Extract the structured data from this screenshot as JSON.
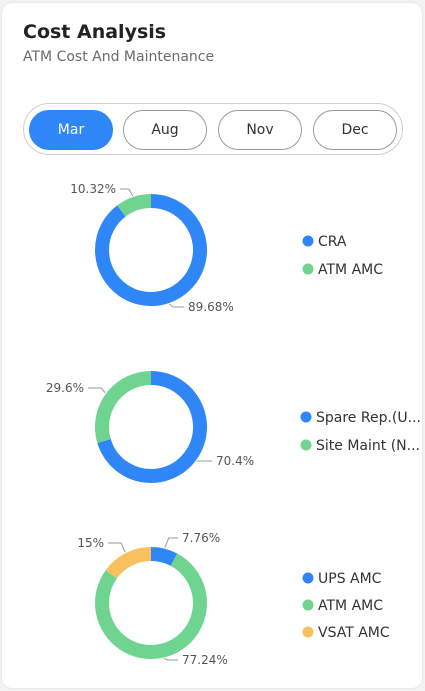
{
  "header": {
    "title": "Cost Analysis",
    "subtitle": "ATM Cost And Maintenance"
  },
  "tabs": [
    {
      "label": "Mar",
      "active": true
    },
    {
      "label": "Aug",
      "active": false
    },
    {
      "label": "Nov",
      "active": false
    },
    {
      "label": "Dec",
      "active": false
    }
  ],
  "colors": {
    "blue": "#2f86f6",
    "green": "#6ed48f",
    "orange": "#f9c15e",
    "accent": "#2f86f6"
  },
  "chart_data": [
    {
      "type": "pie",
      "style": "donut",
      "slices": [
        {
          "label": "CRA",
          "value": 89.68,
          "value_label": "89.68%",
          "color": "#2f86f6"
        },
        {
          "label": "ATM AMC",
          "value": 10.32,
          "value_label": "10.32%",
          "color": "#6ed48f"
        }
      ],
      "legend_position": "right"
    },
    {
      "type": "pie",
      "style": "donut",
      "slices": [
        {
          "label": "Spare Rep.(U...",
          "value": 70.4,
          "value_label": "70.4%",
          "color": "#2f86f6"
        },
        {
          "label": "Site Maint (N...",
          "value": 29.6,
          "value_label": "29.6%",
          "color": "#6ed48f"
        }
      ],
      "legend_position": "right"
    },
    {
      "type": "pie",
      "style": "donut",
      "slices": [
        {
          "label": "UPS AMC",
          "value": 7.76,
          "value_label": "7.76%",
          "color": "#2f86f6"
        },
        {
          "label": "ATM AMC",
          "value": 77.24,
          "value_label": "77.24%",
          "color": "#6ed48f"
        },
        {
          "label": "VSAT AMC",
          "value": 15,
          "value_label": "15%",
          "color": "#f9c15e"
        }
      ],
      "legend_position": "right"
    }
  ]
}
